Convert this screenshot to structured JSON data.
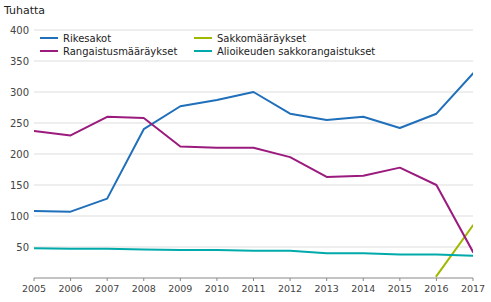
{
  "chart_data": {
    "type": "line",
    "y_label": "Tuhatta",
    "x": [
      2005,
      2006,
      2007,
      2008,
      2009,
      2010,
      2011,
      2012,
      2013,
      2014,
      2015,
      2016,
      2017
    ],
    "xlim": [
      2005,
      2017
    ],
    "xticks": [
      2005,
      2006,
      2007,
      2008,
      2009,
      2010,
      2011,
      2012,
      2013,
      2014,
      2015,
      2016,
      2017
    ],
    "ylim": [
      0,
      400
    ],
    "yticks": [
      50,
      100,
      150,
      200,
      250,
      300,
      350,
      400
    ],
    "grid": true,
    "legend": "upper left",
    "series": [
      {
        "name": "Rikesakot",
        "color": "#1f6fba",
        "values": [
          108,
          107,
          128,
          240,
          277,
          287,
          300,
          265,
          255,
          260,
          242,
          265,
          330
        ]
      },
      {
        "name": "Sakkomääräykset",
        "color": "#a0b800",
        "values": [
          null,
          null,
          null,
          null,
          null,
          null,
          null,
          null,
          null,
          null,
          null,
          3,
          85
        ]
      },
      {
        "name": "Rangaistusmääräykset",
        "color": "#9b1a7e",
        "values": [
          237,
          230,
          260,
          258,
          212,
          210,
          210,
          195,
          163,
          165,
          178,
          150,
          42
        ]
      },
      {
        "name": "Alioikeuden sakkorangaistukset",
        "color": "#00aaaa",
        "values": [
          48,
          47,
          47,
          46,
          45,
          45,
          44,
          44,
          40,
          40,
          38,
          38,
          36
        ]
      }
    ]
  }
}
